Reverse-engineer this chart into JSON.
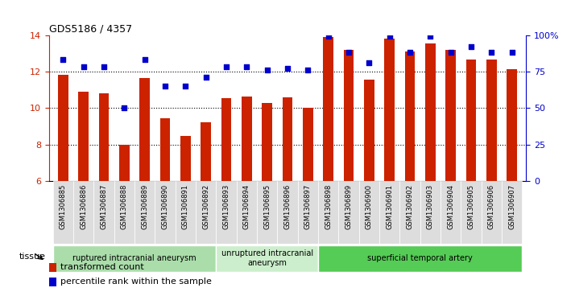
{
  "title": "GDS5186 / 4357",
  "samples": [
    "GSM1306885",
    "GSM1306886",
    "GSM1306887",
    "GSM1306888",
    "GSM1306889",
    "GSM1306890",
    "GSM1306891",
    "GSM1306892",
    "GSM1306893",
    "GSM1306894",
    "GSM1306895",
    "GSM1306896",
    "GSM1306897",
    "GSM1306898",
    "GSM1306899",
    "GSM1306900",
    "GSM1306901",
    "GSM1306902",
    "GSM1306903",
    "GSM1306904",
    "GSM1306905",
    "GSM1306906",
    "GSM1306907"
  ],
  "bar_values": [
    11.8,
    10.9,
    10.8,
    8.0,
    11.65,
    9.45,
    8.45,
    9.2,
    10.55,
    10.65,
    10.3,
    10.6,
    10.0,
    13.9,
    13.2,
    11.55,
    13.8,
    13.1,
    13.55,
    13.2,
    12.65,
    12.65,
    12.15
  ],
  "scatter_values": [
    83,
    78,
    78,
    50,
    83,
    65,
    65,
    71,
    78,
    78,
    76,
    77,
    76,
    99,
    88,
    81,
    99,
    88,
    99,
    88,
    92,
    88,
    88
  ],
  "ylim_left": [
    6,
    14
  ],
  "ylim_right": [
    0,
    100
  ],
  "yticks_left": [
    6,
    8,
    10,
    12,
    14
  ],
  "yticks_right": [
    0,
    25,
    50,
    75,
    100
  ],
  "ytick_labels_right": [
    "0",
    "25",
    "50",
    "75",
    "100%"
  ],
  "bar_color": "#cc2200",
  "scatter_color": "#0000cc",
  "groups": [
    {
      "label": "ruptured intracranial aneurysm",
      "start": 0,
      "end": 8,
      "color": "#aaddaa"
    },
    {
      "label": "unruptured intracranial\naneurysm",
      "start": 8,
      "end": 13,
      "color": "#cceecc"
    },
    {
      "label": "superficial temporal artery",
      "start": 13,
      "end": 23,
      "color": "#55cc55"
    }
  ],
  "tissue_label": "tissue",
  "legend_bar_label": "transformed count",
  "legend_scatter_label": "percentile rank within the sample",
  "bar_width": 0.5,
  "xlim": [
    -0.7,
    22.7
  ],
  "cell_bg": "#dddddd"
}
